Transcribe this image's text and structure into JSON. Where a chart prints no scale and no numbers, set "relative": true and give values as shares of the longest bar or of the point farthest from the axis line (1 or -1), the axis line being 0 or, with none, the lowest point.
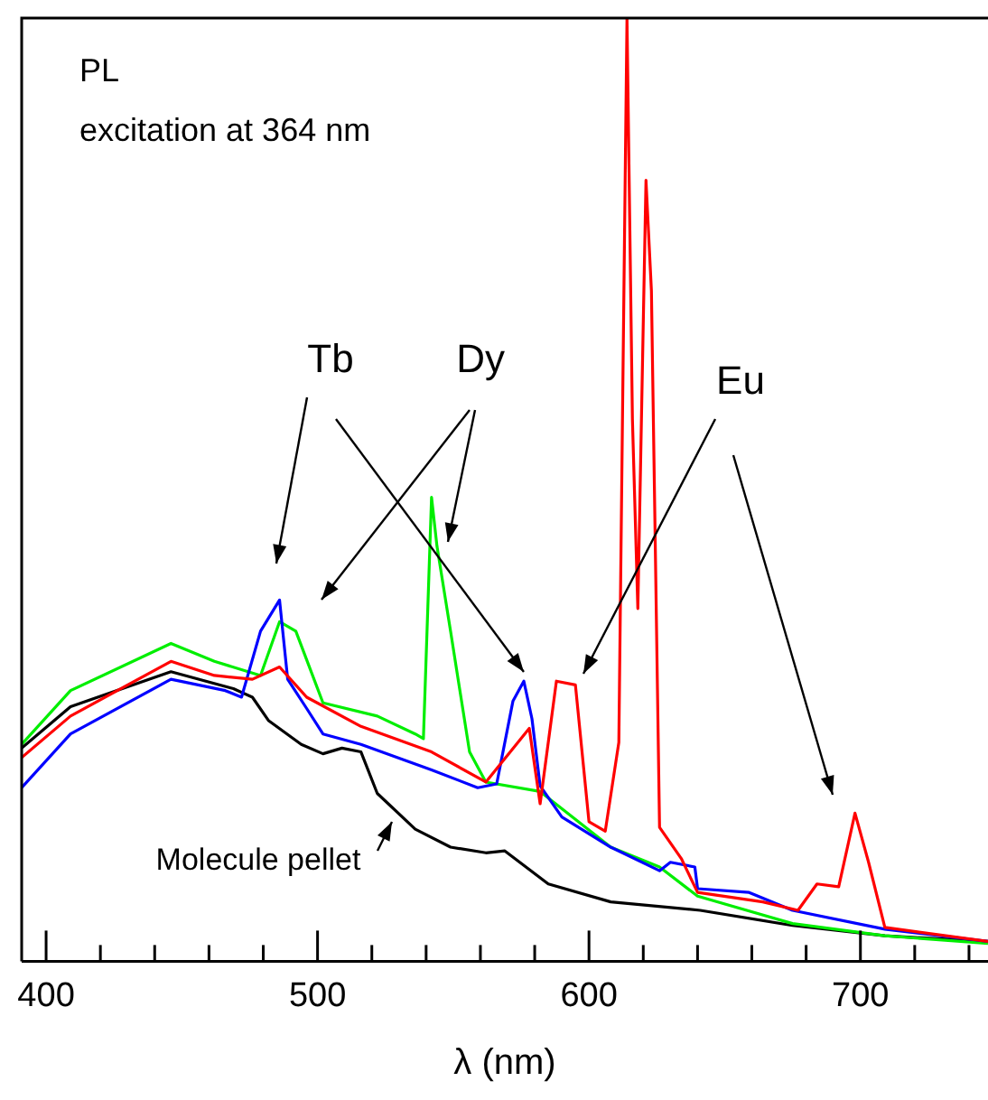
{
  "chart_data": {
    "type": "line",
    "relative": true,
    "xlabel": "λ (nm)",
    "xlim": [
      391,
      747
    ],
    "xticks": [
      400,
      {
        "value": 420,
        "label": null
      },
      {
        "value": 440,
        "label": null
      },
      {
        "value": 460,
        "label": null
      },
      {
        "value": 480,
        "label": null
      },
      500,
      {
        "value": 520,
        "label": null
      },
      {
        "value": 540,
        "label": null
      },
      {
        "value": 560,
        "label": null
      },
      {
        "value": 580,
        "label": null
      },
      600,
      {
        "value": 620,
        "label": null
      },
      {
        "value": 640,
        "label": null
      },
      {
        "value": 660,
        "label": null
      },
      {
        "value": 680,
        "label": null
      },
      700,
      {
        "value": 720,
        "label": null
      },
      {
        "value": 740,
        "label": null
      }
    ],
    "annotations": [
      "PL",
      "excitation at 364 nm",
      "Tb",
      "Dy",
      "Eu",
      "Molecule pellet"
    ],
    "series": [
      {
        "color": "#000000",
        "x": [
          391,
          409,
          446,
          469,
          476,
          482,
          494,
          502,
          509,
          516,
          522,
          536,
          549,
          562,
          569,
          585,
          608,
          641,
          675,
          709,
          747
        ],
        "values": [
          0.226,
          0.27,
          0.307,
          0.289,
          0.28,
          0.255,
          0.23,
          0.22,
          0.226,
          0.222,
          0.178,
          0.14,
          0.121,
          0.115,
          0.117,
          0.082,
          0.063,
          0.054,
          0.038,
          0.027,
          0.021
        ]
      },
      {
        "color": "#00ee00",
        "x": [
          391,
          409,
          446,
          462,
          479,
          486,
          492,
          502,
          522,
          536,
          539,
          542,
          544,
          549,
          556,
          562,
          582,
          608,
          626,
          640,
          675,
          709,
          747
        ],
        "values": [
          0.23,
          0.287,
          0.337,
          0.318,
          0.303,
          0.36,
          0.35,
          0.274,
          0.26,
          0.241,
          0.236,
          0.492,
          0.44,
          0.35,
          0.222,
          0.19,
          0.18,
          0.121,
          0.1,
          0.069,
          0.04,
          0.027,
          0.019
        ]
      },
      {
        "color": "#0000ff",
        "x": [
          391,
          409,
          446,
          466,
          472,
          479,
          486,
          489,
          496,
          502,
          516,
          542,
          559,
          566,
          572,
          576,
          579,
          582,
          590,
          608,
          626,
          630,
          639,
          640,
          659,
          675,
          709,
          747
        ],
        "values": [
          0.184,
          0.241,
          0.299,
          0.287,
          0.28,
          0.35,
          0.383,
          0.299,
          0.268,
          0.241,
          0.23,
          0.203,
          0.184,
          0.188,
          0.276,
          0.297,
          0.257,
          0.186,
          0.153,
          0.121,
          0.096,
          0.105,
          0.1,
          0.077,
          0.073,
          0.054,
          0.034,
          0.021
        ]
      },
      {
        "color": "#ff0000",
        "x": [
          391,
          409,
          446,
          462,
          476,
          486,
          496,
          516,
          542,
          562,
          578,
          582,
          588,
          595,
          600,
          606,
          611,
          614,
          616,
          618,
          621,
          623,
          626,
          634,
          640,
          664,
          677,
          684,
          692,
          698,
          703,
          709,
          747
        ],
        "values": [
          0.216,
          0.26,
          0.318,
          0.303,
          0.299,
          0.312,
          0.28,
          0.249,
          0.222,
          0.19,
          0.247,
          0.167,
          0.297,
          0.293,
          0.148,
          0.138,
          0.232,
          1.0,
          0.575,
          0.374,
          0.828,
          0.711,
          0.142,
          0.109,
          0.073,
          0.063,
          0.054,
          0.082,
          0.079,
          0.157,
          0.105,
          0.036,
          0.021
        ]
      }
    ]
  }
}
